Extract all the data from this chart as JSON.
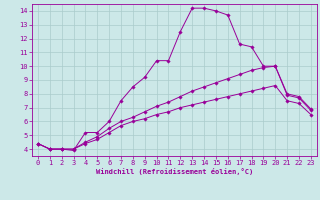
{
  "xlabel": "Windchill (Refroidissement éolien,°C)",
  "background_color": "#cce8e8",
  "line_color": "#990099",
  "grid_color": "#aacccc",
  "xlim": [
    -0.5,
    23.5
  ],
  "ylim": [
    3.5,
    14.5
  ],
  "xticks": [
    0,
    1,
    2,
    3,
    4,
    5,
    6,
    7,
    8,
    9,
    10,
    11,
    12,
    13,
    14,
    15,
    16,
    17,
    18,
    19,
    20,
    21,
    22,
    23
  ],
  "yticks": [
    4,
    5,
    6,
    7,
    8,
    9,
    10,
    11,
    12,
    13,
    14
  ],
  "series": [
    [
      4.4,
      4.0,
      4.0,
      3.9,
      5.2,
      5.2,
      6.0,
      7.5,
      8.5,
      9.2,
      10.4,
      10.4,
      12.5,
      14.2,
      14.2,
      14.0,
      13.7,
      11.6,
      11.4,
      10.0,
      10.0,
      7.9,
      7.7,
      6.8
    ],
    [
      4.4,
      4.0,
      4.0,
      4.0,
      4.5,
      4.9,
      5.5,
      6.0,
      6.3,
      6.7,
      7.1,
      7.4,
      7.8,
      8.2,
      8.5,
      8.8,
      9.1,
      9.4,
      9.7,
      9.9,
      10.0,
      8.0,
      7.8,
      6.9
    ],
    [
      4.4,
      4.0,
      4.0,
      4.0,
      4.4,
      4.7,
      5.2,
      5.7,
      6.0,
      6.2,
      6.5,
      6.7,
      7.0,
      7.2,
      7.4,
      7.6,
      7.8,
      8.0,
      8.2,
      8.4,
      8.6,
      7.5,
      7.3,
      6.5
    ]
  ]
}
